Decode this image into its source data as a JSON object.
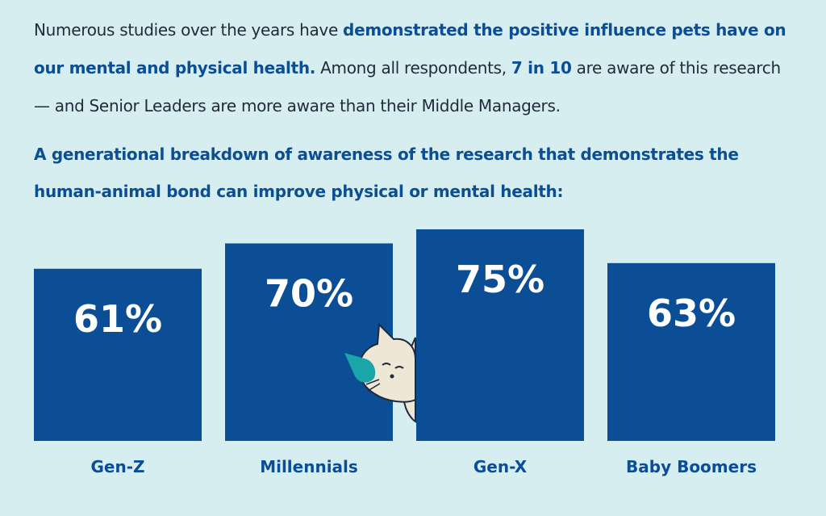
{
  "intro": {
    "part1": "Numerous studies over the years have ",
    "bold1": "demonstrated the positive influence pets have on our mental and physical health.",
    "part2": " Among all respondents, ",
    "bold2": "7 in 10",
    "part3": " are aware of this research — and Senior Leaders are more aware than their Middle Managers."
  },
  "chart_data": {
    "type": "bar",
    "title": "A generational breakdown of awareness of the research that demonstrates the human-animal bond can improve physical or mental health:",
    "categories": [
      "Gen-Z",
      "Millennials",
      "Gen-X",
      "Baby Boomers"
    ],
    "values": [
      61,
      70,
      75,
      63
    ],
    "value_labels": [
      "61%",
      "70%",
      "75%",
      "63%"
    ],
    "ylim": [
      0,
      75
    ],
    "grid": false,
    "bar_color": "#0b4e96"
  },
  "colors": {
    "background": "#d6eeef",
    "accent": "#0b4e96",
    "text": "#1f2a3a"
  },
  "decoration": {
    "icon": "cat-icon"
  }
}
